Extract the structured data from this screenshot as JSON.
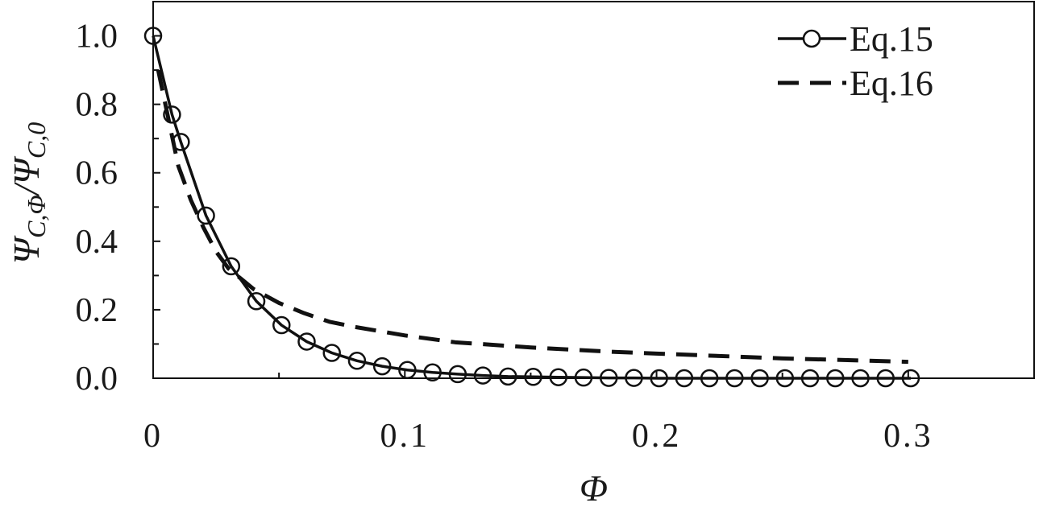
{
  "chart_data": {
    "type": "line",
    "xlabel": "Φ",
    "ylabel": {
      "psi1": "Ψ",
      "sub1": "C,Φ",
      "slash": "/",
      "psi2": "Ψ",
      "sub2": "C,0"
    },
    "xlim": [
      0,
      0.35
    ],
    "ylim": [
      0,
      1.1
    ],
    "x_ticks": [
      0,
      0.1,
      0.2,
      0.3
    ],
    "x_tick_labels": [
      "0",
      "0.1",
      "0.2",
      "0.3"
    ],
    "y_ticks": [
      0,
      0.2,
      0.4,
      0.6,
      0.8,
      1.0
    ],
    "y_tick_labels": [
      "0.0",
      "0.2",
      "0.4",
      "0.6",
      "0.8",
      "1.0"
    ],
    "grid": false,
    "legend_position": "top-right",
    "series": [
      {
        "name": "Eq.15",
        "style": "solid-with-open-circles",
        "color": "#111111",
        "x": [
          0,
          0.0075,
          0.011,
          0.021,
          0.031,
          0.041,
          0.051,
          0.061,
          0.071,
          0.081,
          0.091,
          0.101,
          0.111,
          0.121,
          0.131,
          0.141,
          0.151,
          0.161,
          0.171,
          0.181,
          0.191,
          0.201,
          0.211,
          0.221,
          0.231,
          0.241,
          0.251,
          0.261,
          0.271,
          0.281,
          0.291,
          0.301
        ],
        "y": [
          1.0,
          0.77,
          0.69,
          0.475,
          0.327,
          0.225,
          0.155,
          0.107,
          0.074,
          0.051,
          0.035,
          0.024,
          0.017,
          0.012,
          0.008,
          0.005,
          0.004,
          0.003,
          0.002,
          0.001,
          0.001,
          0.0,
          0.0,
          0.0,
          0.0,
          0.0,
          0.0,
          0.0,
          0.0,
          0.0,
          0.0,
          0.0
        ]
      },
      {
        "name": "Eq.16",
        "style": "dashed",
        "color": "#111111",
        "x": [
          0.002,
          0.006,
          0.01,
          0.015,
          0.02,
          0.025,
          0.03,
          0.035,
          0.04,
          0.05,
          0.06,
          0.07,
          0.08,
          0.1,
          0.12,
          0.15,
          0.18,
          0.2,
          0.25,
          0.3
        ],
        "y": [
          0.9,
          0.76,
          0.62,
          0.52,
          0.44,
          0.37,
          0.32,
          0.29,
          0.26,
          0.22,
          0.19,
          0.165,
          0.15,
          0.125,
          0.105,
          0.09,
          0.078,
          0.072,
          0.058,
          0.048
        ]
      }
    ]
  }
}
